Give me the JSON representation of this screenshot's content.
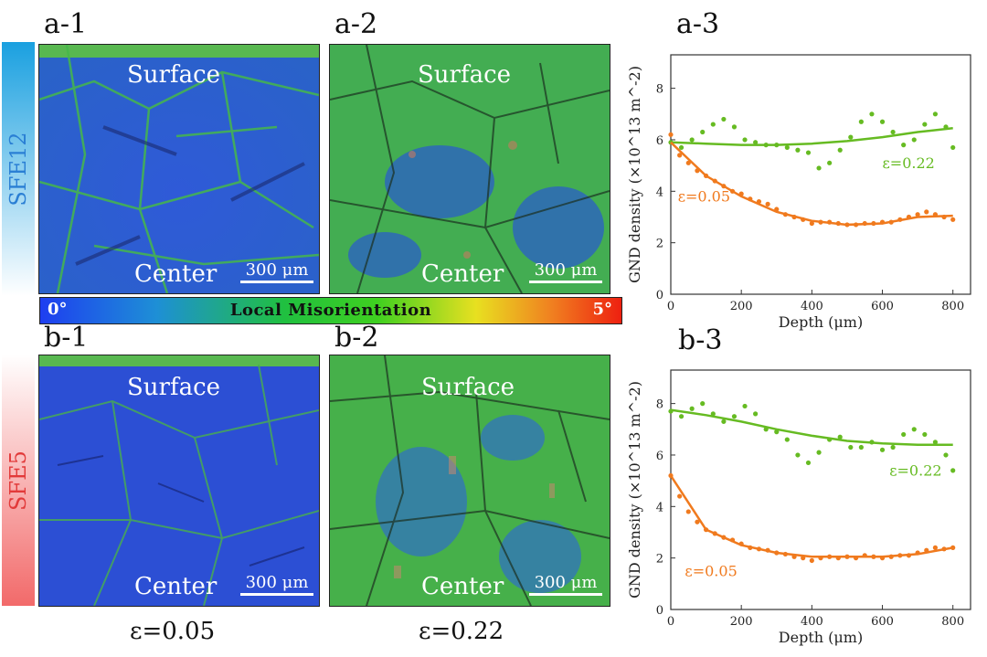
{
  "panels": {
    "a1": "a-1",
    "a2": "a-2",
    "a3": "a-3",
    "b1": "b-1",
    "b2": "b-2",
    "b3": "b-3"
  },
  "rows": {
    "top": "SFE12",
    "bottom": "SFE5"
  },
  "map_labels": {
    "surface": "Surface",
    "center": "Center",
    "scale": "300 μm"
  },
  "colorbar": {
    "min": "0°",
    "max": "5°",
    "title": "Local  Misorientation",
    "colors": [
      "#1e3ef0",
      "#1e8fd6",
      "#20c040",
      "#e8e020",
      "#f08020",
      "#ee2010"
    ]
  },
  "strains": {
    "left": "ε=0.05",
    "right": "ε=0.22"
  },
  "colors": {
    "green": "#66bb22",
    "orange": "#f07a1e"
  },
  "chart_data": [
    {
      "type": "scatter",
      "panel": "a-3",
      "xlabel": "Depth (μm)",
      "ylabel": "GND density (×10^13 m^-2)",
      "xlim": [
        0,
        850
      ],
      "ylim": [
        0,
        9.3
      ],
      "xticks": [
        0,
        200,
        400,
        600,
        800
      ],
      "yticks": [
        0,
        2,
        4,
        6,
        8
      ],
      "series": [
        {
          "name": "ε=0.22",
          "color": "#66bb22",
          "x": [
            0,
            30,
            60,
            90,
            120,
            150,
            180,
            210,
            240,
            270,
            300,
            330,
            360,
            390,
            420,
            450,
            480,
            510,
            540,
            570,
            600,
            630,
            660,
            690,
            720,
            750,
            780,
            800
          ],
          "y": [
            5.9,
            5.7,
            6.0,
            6.3,
            6.6,
            6.8,
            6.5,
            6.0,
            5.9,
            5.8,
            5.8,
            5.7,
            5.6,
            5.5,
            4.9,
            5.1,
            5.6,
            6.1,
            6.7,
            7.0,
            6.7,
            6.3,
            5.8,
            6.0,
            6.6,
            7.0,
            6.5,
            5.7
          ],
          "fit_x": [
            0,
            100,
            200,
            300,
            400,
            500,
            600,
            700,
            800
          ],
          "fit_y": [
            5.9,
            5.85,
            5.8,
            5.8,
            5.85,
            5.95,
            6.1,
            6.3,
            6.45
          ],
          "annotation": "ε=0.22"
        },
        {
          "name": "ε=0.05",
          "color": "#f07a1e",
          "x": [
            0,
            25,
            50,
            75,
            100,
            125,
            150,
            175,
            200,
            225,
            250,
            275,
            300,
            325,
            350,
            375,
            400,
            425,
            450,
            475,
            500,
            525,
            550,
            575,
            600,
            625,
            650,
            675,
            700,
            725,
            750,
            775,
            800
          ],
          "y": [
            6.2,
            5.4,
            5.1,
            4.8,
            4.6,
            4.4,
            4.2,
            4.0,
            3.9,
            3.7,
            3.6,
            3.5,
            3.3,
            3.1,
            3.0,
            2.9,
            2.75,
            2.8,
            2.8,
            2.75,
            2.7,
            2.7,
            2.75,
            2.75,
            2.8,
            2.8,
            2.9,
            3.0,
            3.1,
            3.2,
            3.1,
            3.0,
            2.9
          ],
          "fit_x": [
            0,
            100,
            200,
            300,
            400,
            500,
            600,
            700,
            800
          ],
          "fit_y": [
            5.9,
            4.6,
            3.8,
            3.2,
            2.85,
            2.7,
            2.75,
            3.0,
            3.05
          ],
          "annotation": "ε=0.05"
        }
      ]
    },
    {
      "type": "scatter",
      "panel": "b-3",
      "xlabel": "Depth (μm)",
      "ylabel": "GND density (×10^13 m^-2)",
      "xlim": [
        0,
        850
      ],
      "ylim": [
        0,
        9.3
      ],
      "xticks": [
        0,
        200,
        400,
        600,
        800
      ],
      "yticks": [
        0,
        2,
        4,
        6,
        8
      ],
      "series": [
        {
          "name": "ε=0.22",
          "color": "#66bb22",
          "x": [
            0,
            30,
            60,
            90,
            120,
            150,
            180,
            210,
            240,
            270,
            300,
            330,
            360,
            390,
            420,
            450,
            480,
            510,
            540,
            570,
            600,
            630,
            660,
            690,
            720,
            750,
            780,
            800
          ],
          "y": [
            7.7,
            7.5,
            7.8,
            8.0,
            7.6,
            7.3,
            7.5,
            7.9,
            7.6,
            7.0,
            6.9,
            6.6,
            6.0,
            5.7,
            6.1,
            6.6,
            6.7,
            6.3,
            6.3,
            6.5,
            6.2,
            6.3,
            6.8,
            7.0,
            6.8,
            6.5,
            6.0,
            5.4
          ],
          "fit_x": [
            0,
            100,
            200,
            300,
            400,
            500,
            600,
            700,
            800
          ],
          "fit_y": [
            7.75,
            7.55,
            7.3,
            7.0,
            6.75,
            6.55,
            6.45,
            6.4,
            6.4
          ],
          "annotation": "ε=0.22"
        },
        {
          "name": "ε=0.05",
          "color": "#f07a1e",
          "x": [
            0,
            25,
            50,
            75,
            100,
            125,
            150,
            175,
            200,
            225,
            250,
            275,
            300,
            325,
            350,
            375,
            400,
            425,
            450,
            475,
            500,
            525,
            550,
            575,
            600,
            625,
            650,
            675,
            700,
            725,
            750,
            775,
            800
          ],
          "y": [
            5.2,
            4.4,
            3.8,
            3.4,
            3.1,
            2.95,
            2.8,
            2.7,
            2.55,
            2.4,
            2.35,
            2.3,
            2.2,
            2.15,
            2.05,
            2.0,
            1.9,
            2.0,
            2.05,
            2.0,
            2.05,
            2.0,
            2.1,
            2.05,
            2.0,
            2.05,
            2.1,
            2.1,
            2.2,
            2.3,
            2.4,
            2.35,
            2.4
          ],
          "fit_x": [
            0,
            100,
            200,
            300,
            400,
            500,
            600,
            700,
            800
          ],
          "fit_y": [
            5.2,
            3.1,
            2.5,
            2.2,
            2.05,
            2.05,
            2.05,
            2.15,
            2.4
          ],
          "annotation": "ε=0.05"
        }
      ]
    }
  ]
}
